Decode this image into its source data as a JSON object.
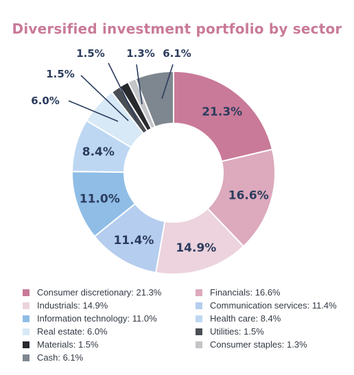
{
  "chart_data": {
    "type": "pie",
    "title": "Diversified investment portfolio by sector",
    "slices": [
      {
        "label": "Consumer discretionary",
        "value": 21.3,
        "display": "21.3%",
        "legend": "Consumer discretionary: 21.3%",
        "color": "#c97a98"
      },
      {
        "label": "Financials",
        "value": 16.6,
        "display": "16.6%",
        "legend": "Financials: 16.6%",
        "color": "#dca9bd"
      },
      {
        "label": "Industrials",
        "value": 14.9,
        "display": "14.9%",
        "legend": "Industrials: 14.9%",
        "color": "#ecd3dd"
      },
      {
        "label": "Communication services",
        "value": 11.4,
        "display": "11.4%",
        "legend": "Communication services: 11.4%",
        "color": "#b5cdee"
      },
      {
        "label": "Information technology",
        "value": 11.0,
        "display": "11.0%",
        "legend": "Information technology: 11.0%",
        "color": "#8fbde6"
      },
      {
        "label": "Health care",
        "value": 8.4,
        "display": "8.4%",
        "legend": "Health care: 8.4%",
        "color": "#bdd7f2"
      },
      {
        "label": "Real estate",
        "value": 6.0,
        "display": "6.0%",
        "legend": "Real estate: 6.0%",
        "color": "#d7e8f6"
      },
      {
        "label": "Utilities",
        "value": 1.5,
        "display": "1.5%",
        "legend": "Utilities: 1.5%",
        "color": "#4a4e55"
      },
      {
        "label": "Materials",
        "value": 1.5,
        "display": "1.5%",
        "legend": "Materials: 1.5%",
        "color": "#27292d"
      },
      {
        "label": "Consumer staples",
        "value": 1.3,
        "display": "1.3%",
        "legend": "Consumer staples: 1.3%",
        "color": "#c3c5c8"
      },
      {
        "label": "Cash",
        "value": 6.1,
        "display": "6.1%",
        "legend": "Cash: 6.1%",
        "color": "#7e878f"
      }
    ],
    "label_color": "#2c3c5e",
    "legend_placement": "bottom"
  }
}
